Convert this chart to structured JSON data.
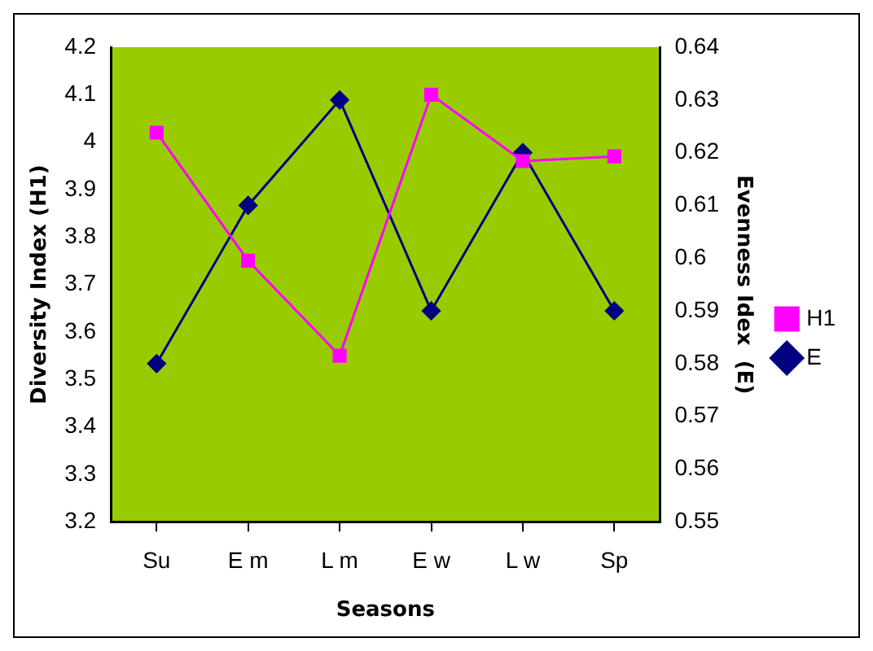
{
  "chart_data": {
    "type": "line",
    "xlabel": "Seasons",
    "ylabel": "Diversity Index (H1)",
    "y2label": "Evenness Idex  (E)",
    "categories": [
      "Su",
      "E m",
      "L m",
      "E w",
      "L w",
      "Sp"
    ],
    "series": [
      {
        "name": "H1",
        "color": "#ff00ff",
        "marker": "square",
        "values": [
          4.02,
          3.75,
          3.55,
          4.1,
          3.96,
          3.97
        ]
      },
      {
        "name": "E",
        "color": "#000080",
        "marker": "diamond",
        "axis": "y2",
        "values": [
          0.58,
          0.61,
          0.63,
          0.59,
          0.62,
          0.59
        ]
      }
    ],
    "ylim": [
      3.2,
      4.2
    ],
    "yticks": [
      3.2,
      3.3,
      3.4,
      3.5,
      3.6,
      3.7,
      3.8,
      3.9,
      4,
      4.1,
      4.2
    ],
    "y2lim": [
      0.55,
      0.64
    ],
    "y2ticks": [
      0.55,
      0.56,
      0.57,
      0.58,
      0.59,
      0.6,
      0.61,
      0.62,
      0.63,
      0.64
    ],
    "grid": false,
    "legend": "right"
  }
}
